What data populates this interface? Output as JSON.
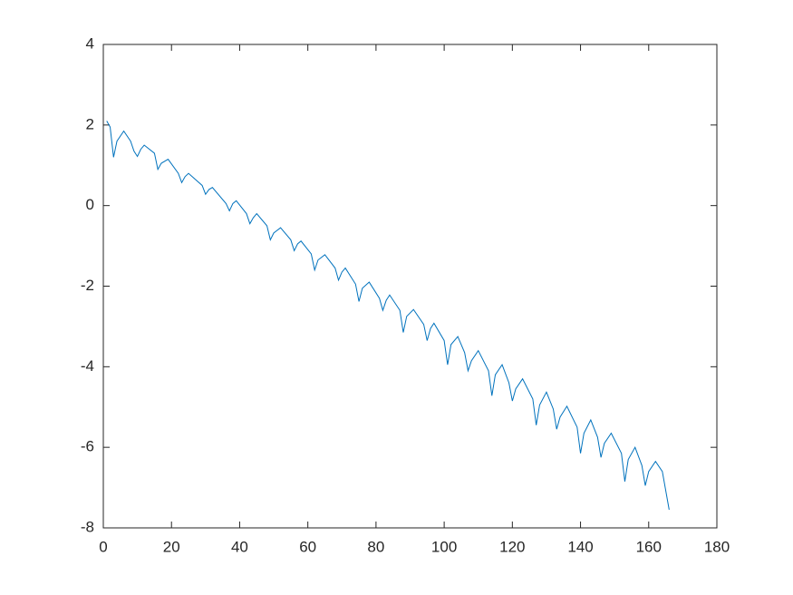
{
  "chart_data": {
    "type": "line",
    "x": [
      1,
      2,
      3,
      4,
      6,
      8,
      9,
      10,
      11,
      12,
      15,
      16,
      17,
      19,
      22,
      23,
      24,
      25,
      29,
      30,
      31,
      32,
      36,
      37,
      38,
      39,
      42,
      43,
      44,
      45,
      48,
      49,
      50,
      52,
      55,
      56,
      57,
      58,
      61,
      62,
      63,
      65,
      68,
      69,
      70,
      71,
      74,
      75,
      76,
      78,
      81,
      82,
      83,
      84,
      87,
      88,
      89,
      91,
      94,
      95,
      96,
      97,
      100,
      101,
      102,
      104,
      106,
      107,
      108,
      110,
      113,
      114,
      115,
      117,
      119,
      120,
      121,
      123,
      126,
      127,
      128,
      130,
      132,
      133,
      134,
      136,
      139,
      140,
      141,
      143,
      145,
      146,
      147,
      149,
      152,
      153,
      154,
      156,
      158,
      159,
      160,
      162,
      164,
      166
    ],
    "series": [
      {
        "color": "#0072bd",
        "values": [
          2.1,
          1.95,
          1.2,
          1.6,
          1.85,
          1.6,
          1.35,
          1.22,
          1.4,
          1.5,
          1.3,
          0.9,
          1.05,
          1.15,
          0.8,
          0.57,
          0.72,
          0.8,
          0.5,
          0.28,
          0.4,
          0.45,
          0.05,
          -0.13,
          0.05,
          0.12,
          -0.2,
          -0.45,
          -0.3,
          -0.2,
          -0.5,
          -0.85,
          -0.68,
          -0.55,
          -0.85,
          -1.12,
          -0.95,
          -0.88,
          -1.2,
          -1.6,
          -1.35,
          -1.22,
          -1.55,
          -1.85,
          -1.65,
          -1.55,
          -1.95,
          -2.38,
          -2.05,
          -1.9,
          -2.3,
          -2.6,
          -2.35,
          -2.22,
          -2.6,
          -3.15,
          -2.75,
          -2.58,
          -2.95,
          -3.35,
          -3.05,
          -2.92,
          -3.35,
          -3.95,
          -3.45,
          -3.25,
          -3.65,
          -4.1,
          -3.85,
          -3.6,
          -4.1,
          -4.72,
          -4.2,
          -3.95,
          -4.4,
          -4.85,
          -4.55,
          -4.3,
          -4.8,
          -5.45,
          -4.95,
          -4.63,
          -5.05,
          -5.55,
          -5.25,
          -4.98,
          -5.5,
          -6.15,
          -5.65,
          -5.32,
          -5.75,
          -6.25,
          -5.9,
          -5.65,
          -6.15,
          -6.85,
          -6.3,
          -6.0,
          -6.45,
          -6.95,
          -6.6,
          -6.35,
          -6.6,
          -7.55
        ]
      }
    ],
    "xlim": [
      0,
      180
    ],
    "xticks": [
      0,
      20,
      40,
      60,
      80,
      100,
      120,
      140,
      160,
      180
    ],
    "ylim": [
      -8,
      4
    ],
    "yticks": [
      -8,
      -6,
      -4,
      -2,
      0,
      2,
      4
    ]
  }
}
